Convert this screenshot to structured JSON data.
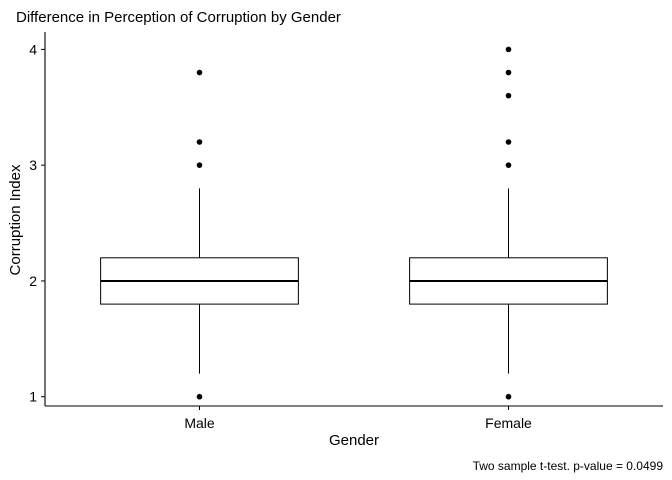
{
  "chart_data": {
    "type": "boxplot",
    "title": "Difference in Perception of Corruption by Gender",
    "xlabel": "Gender",
    "ylabel": "Corruption Index",
    "caption": "Two sample t-test. p-value =  0.0499",
    "ylim": [
      0.92,
      4.15
    ],
    "yticks": [
      1,
      2,
      3,
      4
    ],
    "ytick_labels": [
      "1",
      "2",
      "3",
      "4"
    ],
    "grid": false,
    "categories": [
      "Male",
      "Female"
    ],
    "boxes": [
      {
        "category": "Male",
        "lower_whisker": 1.2,
        "q1": 1.8,
        "median": 2.0,
        "q3": 2.2,
        "upper_whisker": 2.8,
        "outliers": [
          1.0,
          3.0,
          3.2,
          3.8
        ]
      },
      {
        "category": "Female",
        "lower_whisker": 1.2,
        "q1": 1.8,
        "median": 2.0,
        "q3": 2.2,
        "upper_whisker": 2.8,
        "outliers": [
          1.0,
          3.0,
          3.2,
          3.6,
          3.8,
          4.0
        ]
      }
    ]
  }
}
